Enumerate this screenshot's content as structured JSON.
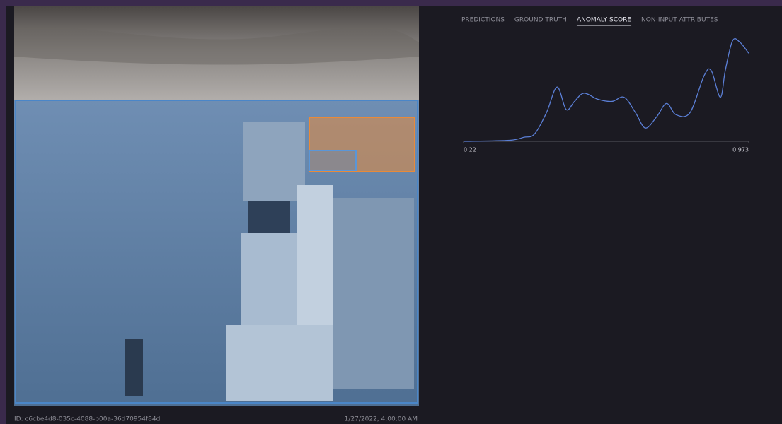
{
  "tabs": [
    {
      "label": "PREDICTIONS",
      "selected": false
    },
    {
      "label": "GROUND TRUTH",
      "selected": false
    },
    {
      "label": "ANOMALY SCORE",
      "selected": true
    },
    {
      "label": "NON-INPUT ATTRIBUTES",
      "selected": false
    }
  ],
  "chart_data": {
    "type": "line",
    "x": [
      0.22,
      0.341,
      0.379,
      0.407,
      0.439,
      0.467,
      0.491,
      0.513,
      0.538,
      0.575,
      0.612,
      0.644,
      0.674,
      0.7,
      0.73,
      0.756,
      0.781,
      0.818,
      0.855,
      0.874,
      0.898,
      0.911,
      0.93,
      0.949,
      0.973
    ],
    "values": [
      0,
      0.01,
      0.04,
      0.07,
      0.28,
      0.53,
      0.31,
      0.39,
      0.47,
      0.41,
      0.39,
      0.43,
      0.28,
      0.13,
      0.24,
      0.37,
      0.26,
      0.28,
      0.64,
      0.69,
      0.43,
      0.69,
      0.98,
      0.97,
      0.86
    ],
    "color": "#5b7fd6",
    "xlim": [
      0.22,
      0.973
    ],
    "xticks": [
      0.22,
      0.973
    ],
    "ylim": [
      0,
      1
    ]
  },
  "footer": {
    "id": "ID: c6cbe4d8-035c-4088-b00a-36d70954f84d",
    "timestamp": "1/27/2022, 4:00:00 AM"
  }
}
